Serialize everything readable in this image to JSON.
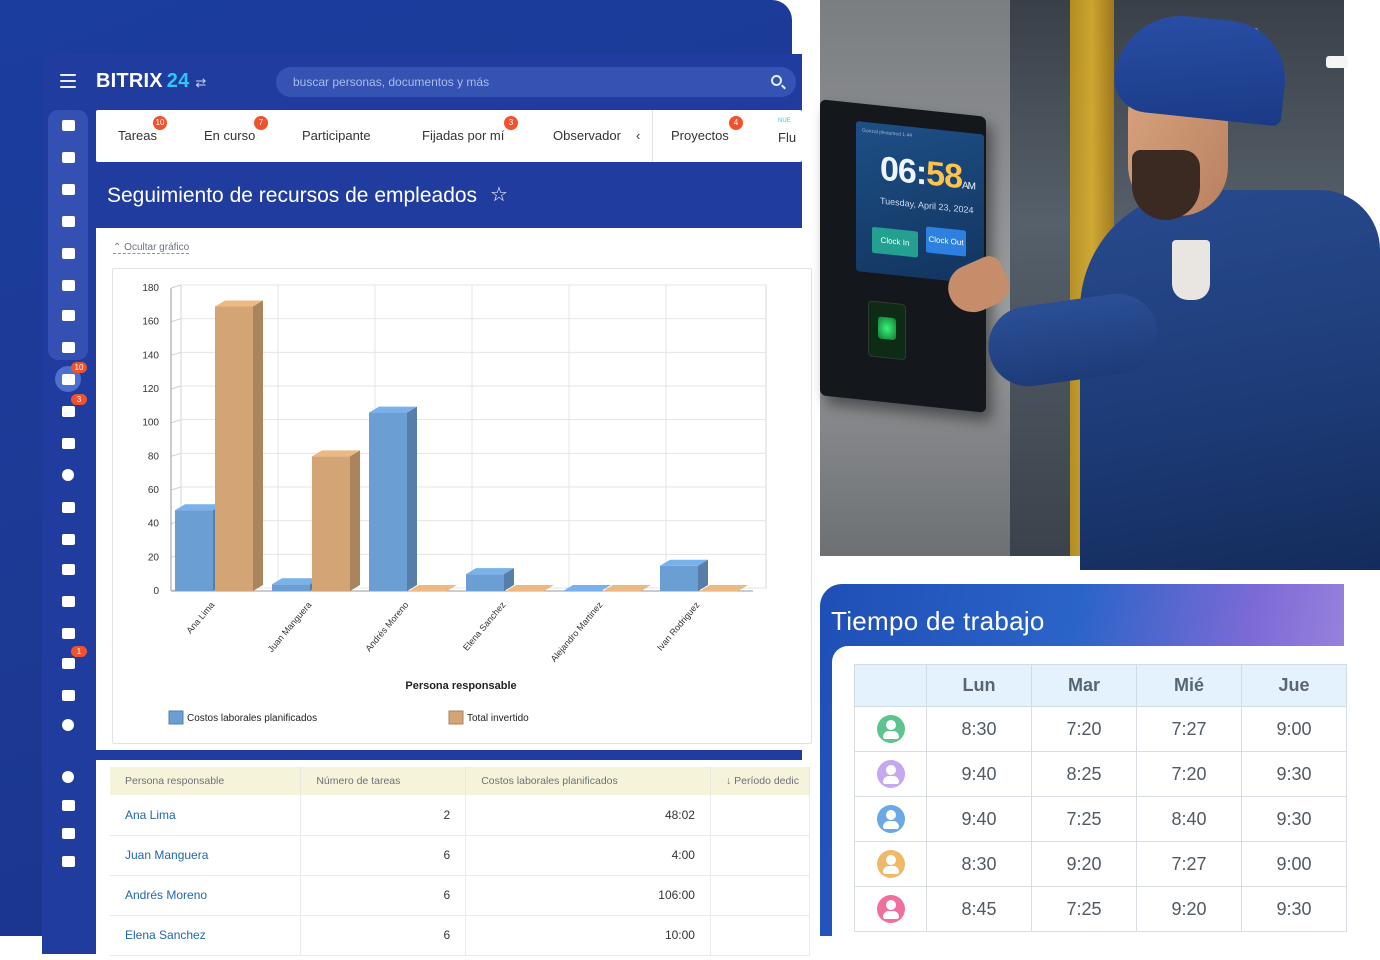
{
  "app": {
    "logo_text": "BITRIX",
    "logo_number": "24",
    "search_placeholder": "buscar personas, documentos y más"
  },
  "sidebar": {
    "items": [
      {
        "name": "sidebar-item-feed",
        "icon": "network-icon"
      },
      {
        "name": "sidebar-item-messenger",
        "icon": "message-icon"
      },
      {
        "name": "sidebar-item-chats",
        "icon": "chat-icon"
      },
      {
        "name": "sidebar-item-calendar",
        "icon": "calendar-icon"
      },
      {
        "name": "sidebar-item-documents",
        "icon": "document-icon"
      },
      {
        "name": "sidebar-item-drive",
        "icon": "drive-icon"
      },
      {
        "name": "sidebar-item-mail",
        "icon": "mail-icon"
      },
      {
        "name": "sidebar-item-groups",
        "icon": "group-icon"
      },
      {
        "name": "sidebar-item-tasks",
        "icon": "task-icon",
        "badge": "10"
      },
      {
        "name": "sidebar-item-crm",
        "icon": "filter-icon",
        "badge": "3"
      },
      {
        "name": "sidebar-item-bank",
        "icon": "bank-icon"
      },
      {
        "name": "sidebar-item-marketing",
        "icon": "target-icon"
      },
      {
        "name": "sidebar-item-store",
        "icon": "cart-icon"
      },
      {
        "name": "sidebar-item-forms",
        "icon": "form-icon"
      },
      {
        "name": "sidebar-item-sign",
        "icon": "signature-icon"
      },
      {
        "name": "sidebar-item-analytics",
        "icon": "bar-chart-icon"
      },
      {
        "name": "sidebar-item-contacts",
        "icon": "id-card-icon"
      },
      {
        "name": "sidebar-item-automation",
        "icon": "robot-icon",
        "badge": "1"
      },
      {
        "name": "sidebar-item-inventory",
        "icon": "box-icon"
      },
      {
        "name": "sidebar-item-more",
        "icon": "chevron-down-icon"
      },
      {
        "name": "sidebar-item-help",
        "icon": "help-icon"
      },
      {
        "name": "sidebar-item-structure",
        "icon": "hierarchy-icon"
      },
      {
        "name": "sidebar-item-settings",
        "icon": "gear-icon"
      },
      {
        "name": "sidebar-item-add",
        "icon": "plus-icon"
      }
    ]
  },
  "tabs": [
    {
      "label": "Tareas",
      "badge": "10"
    },
    {
      "label": "En curso",
      "badge": "7"
    },
    {
      "label": "Participante",
      "badge": ""
    },
    {
      "label": "Fijadas por mí",
      "badge": "3"
    },
    {
      "label": "Observador",
      "badge": ""
    },
    {
      "label": "Proyectos",
      "badge": "4"
    },
    {
      "label": "Flu",
      "badge": ""
    }
  ],
  "tabs_new_label": "NUE",
  "page": {
    "title": "Seguimiento de recursos de empleados",
    "hide_chart_link": "Ocultar gráfico"
  },
  "chart_data": {
    "type": "bar",
    "categories": [
      "Ana Lima",
      "Juan Manguera",
      "Andrés Moreno",
      "Elena Sanchez",
      "Alejandro Martinez",
      "Ivan Rodriguez"
    ],
    "series": [
      {
        "name": "Costos laborales planificados",
        "values": [
          48,
          4,
          106,
          10,
          0,
          15
        ],
        "color": "#6b9ed3"
      },
      {
        "name": "Total invertido",
        "values": [
          169,
          80,
          0,
          0,
          0,
          0
        ],
        "color": "#d4a574"
      }
    ],
    "xlabel": "Persona responsable",
    "ylabel": "",
    "ylim": [
      0,
      180
    ],
    "yticks": [
      0,
      20,
      40,
      60,
      80,
      100,
      120,
      140,
      160,
      180
    ],
    "legend_position": "bottom",
    "grid": true
  },
  "table": {
    "headers": [
      "Persona responsable",
      "Número de tareas",
      "Costos laborales planificados",
      "↓ Período dedic"
    ],
    "rows": [
      {
        "name": "Ana Lima",
        "tasks": "2",
        "cost": "48:02"
      },
      {
        "name": "Juan Manguera",
        "tasks": "6",
        "cost": "4:00"
      },
      {
        "name": "Andrés Moreno",
        "tasks": "6",
        "cost": "106:00"
      },
      {
        "name": "Elena Sanchez",
        "tasks": "6",
        "cost": "10:00"
      }
    ]
  },
  "terminal": {
    "time_hour": "06",
    "time_min": "58",
    "ampm": "AM",
    "date": "Tuesday, April 23, 2024",
    "clock_in": "Clock In",
    "clock_out": "Clock Out",
    "top_text": "Gonzal pleasmed 1:44"
  },
  "work_time": {
    "title": "Tiempo de trabajo",
    "days": [
      "Lun",
      "Mar",
      "Mié",
      "Jue"
    ],
    "rows": [
      {
        "avatar_color": "#5dc48d",
        "hours": [
          "8:30",
          "7:20",
          "7:27",
          "9:00"
        ]
      },
      {
        "avatar_color": "#c5a8ee",
        "hours": [
          "9:40",
          "8:25",
          "7:20",
          "9:30"
        ]
      },
      {
        "avatar_color": "#6aa8e6",
        "hours": [
          "9:40",
          "7:25",
          "8:40",
          "9:30"
        ]
      },
      {
        "avatar_color": "#f0b96a",
        "hours": [
          "8:30",
          "9:20",
          "7:27",
          "9:00"
        ]
      },
      {
        "avatar_color": "#ef6f9f",
        "hours": [
          "8:45",
          "7:25",
          "9:20",
          "9:30"
        ]
      }
    ]
  }
}
